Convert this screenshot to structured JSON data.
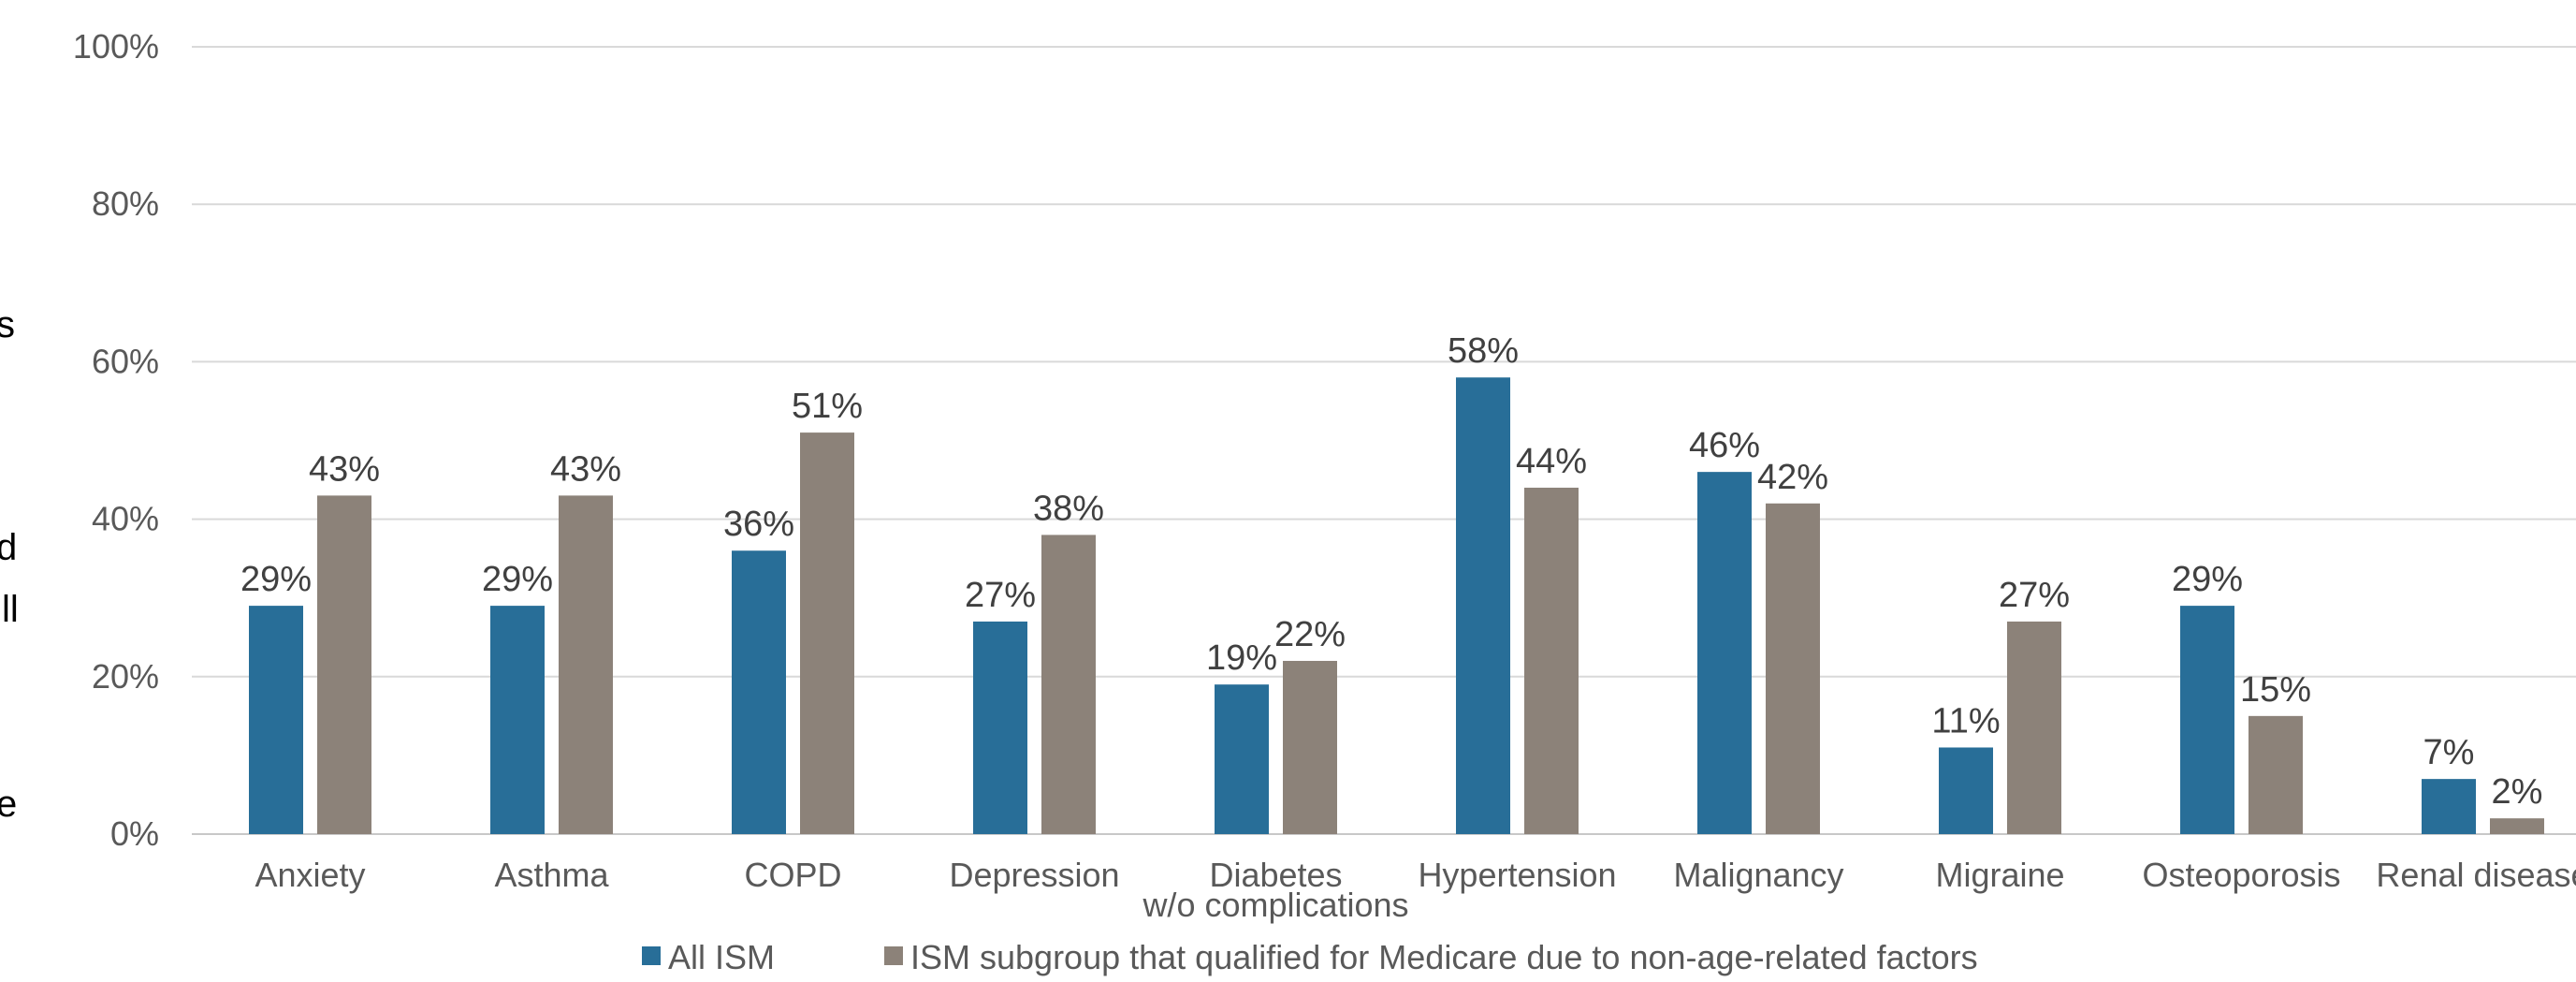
{
  "chart_data": {
    "type": "bar",
    "title": "",
    "xlabel": "",
    "ylabel": "",
    "ylim": [
      0,
      100
    ],
    "yticks": [
      "0%",
      "20%",
      "40%",
      "60%",
      "80%",
      "100%"
    ],
    "grid": true,
    "legend_position": "bottom",
    "categories": [
      [
        "Anxiety"
      ],
      [
        "Asthma"
      ],
      [
        "COPD"
      ],
      [
        "Depression"
      ],
      [
        "Diabetes",
        "w/o complications"
      ],
      [
        "Hypertension"
      ],
      [
        "Malignancy"
      ],
      [
        "Migraine"
      ],
      [
        "Osteoporosis"
      ],
      [
        "Renal disease"
      ]
    ],
    "series": [
      {
        "name": "All ISM",
        "color": "#286E98",
        "values": [
          29,
          29,
          36,
          27,
          19,
          58,
          46,
          11,
          29,
          7
        ],
        "labels": [
          "29%",
          "29%",
          "36%",
          "27%",
          "19%",
          "58%",
          "46%",
          "11%",
          "29%",
          "7%"
        ]
      },
      {
        "name": "ISM subgroup that qualified for Medicare due to non-age-related factors",
        "color": "#8C8279",
        "values": [
          43,
          43,
          51,
          38,
          22,
          44,
          42,
          27,
          15,
          2
        ],
        "labels": [
          "43%",
          "43%",
          "51%",
          "38%",
          "22%",
          "44%",
          "42%",
          "27%",
          "15%",
          "2%"
        ]
      }
    ]
  },
  "left_edge_text": [
    "s",
    "d",
    "ll",
    "e"
  ]
}
